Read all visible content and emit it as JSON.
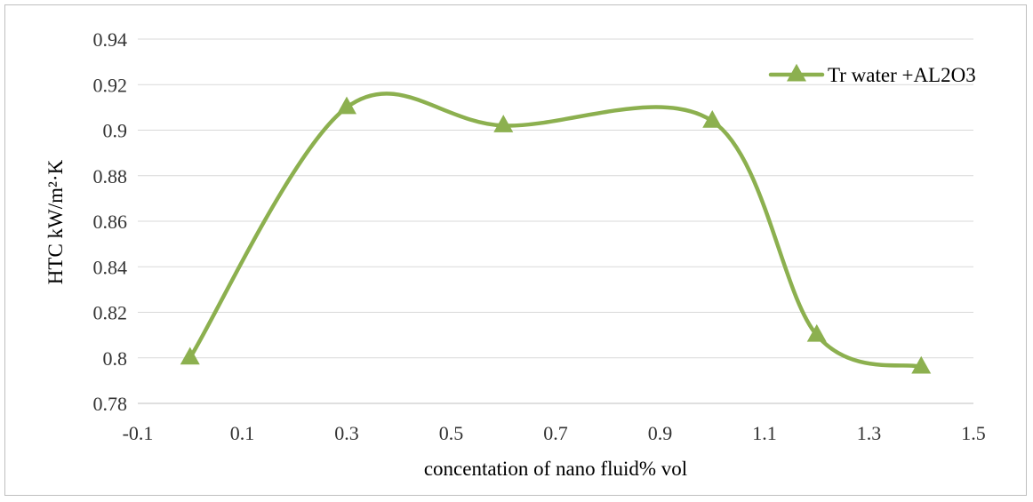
{
  "chart_data": {
    "type": "line",
    "smooth": true,
    "title": "",
    "xlabel": "concentation of nano fluid% vol",
    "ylabel": "HTC kW/m²·K",
    "xlim": [
      -0.1,
      1.5
    ],
    "ylim": [
      0.78,
      0.94
    ],
    "x_ticks": [
      "-0.1",
      "0.1",
      "0.3",
      "0.5",
      "0.7",
      "0.9",
      "1.1",
      "1.3",
      "1.5"
    ],
    "y_ticks": [
      "0.78",
      "0.8",
      "0.82",
      "0.84",
      "0.86",
      "0.88",
      "0.9",
      "0.92",
      "0.94"
    ],
    "grid": {
      "horizontal": true,
      "vertical": false
    },
    "legend_position": "top-right",
    "series": [
      {
        "name": "Tr water +AL2O3",
        "color": "#8cb04f",
        "marker": "triangle",
        "x": [
          0,
          0.3,
          0.6,
          1.0,
          1.2,
          1.4
        ],
        "y": [
          0.8,
          0.91,
          0.902,
          0.904,
          0.81,
          0.796
        ]
      }
    ]
  }
}
